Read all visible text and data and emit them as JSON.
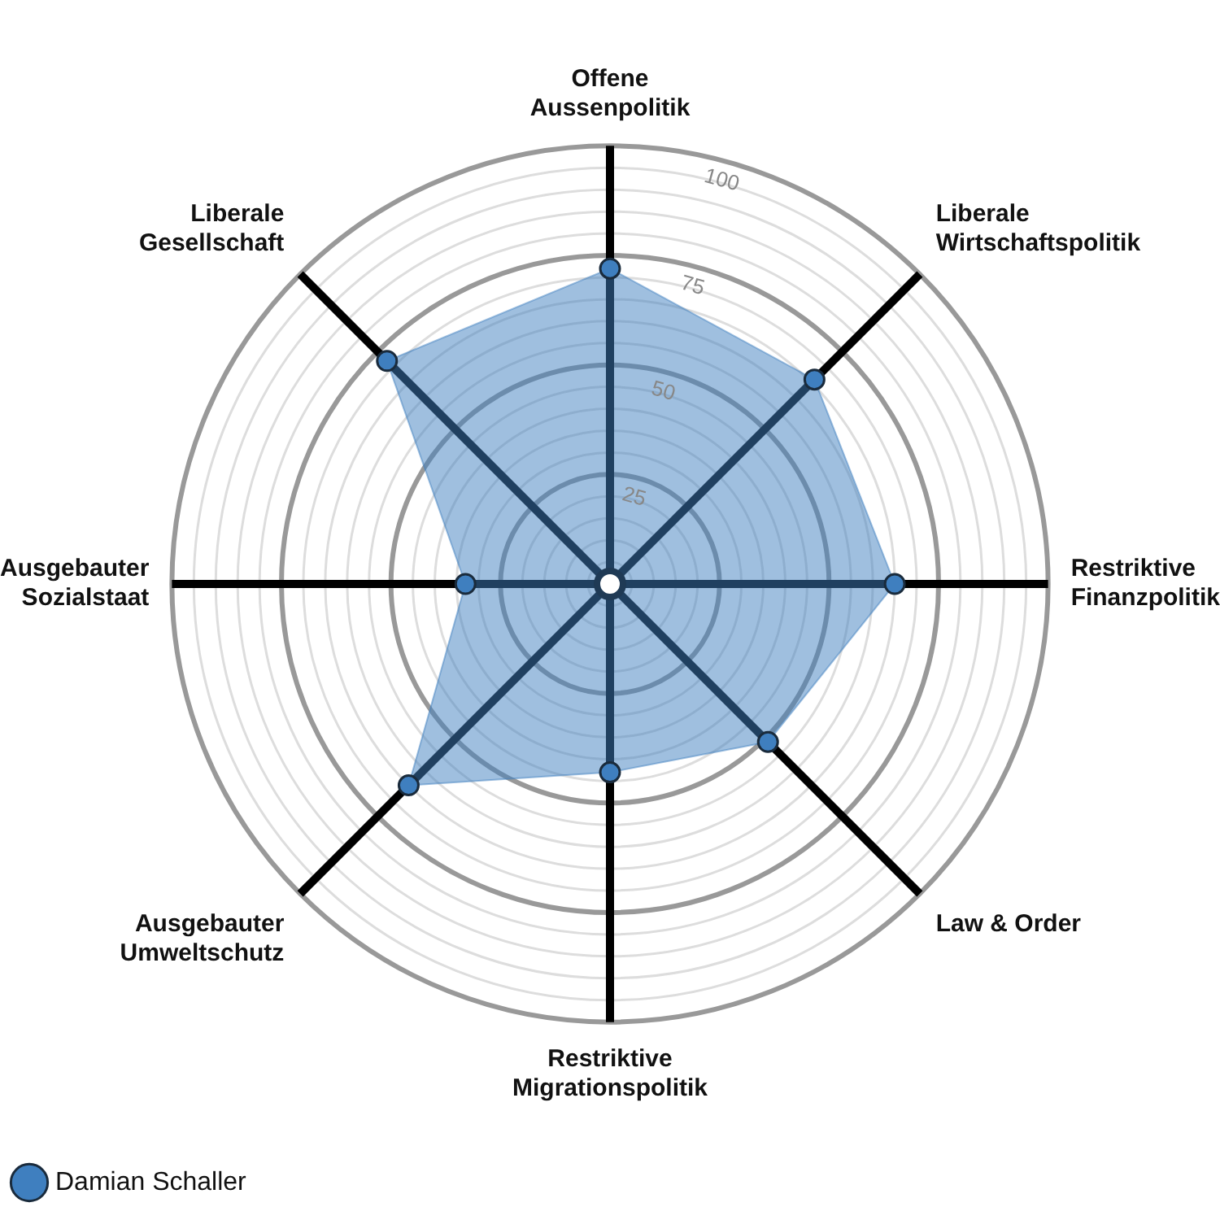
{
  "chart_data": {
    "type": "radar",
    "categories": [
      "Offene\nAussenpolitik",
      "Liberale\nWirtschaftspolitik",
      "Restriktive\nFinanzpolitik",
      "Law & Order",
      "Restriktive\nMigrationspolitik",
      "Ausgebauter\nUmweltschutz",
      "Ausgebauter\nSozialstaat",
      "Liberale\nGesellschaft"
    ],
    "series": [
      {
        "name": "Damian Schaller",
        "color": "#3f7fbf",
        "values": [
          72,
          66,
          65,
          51,
          43,
          65,
          33,
          72
        ]
      }
    ],
    "ylim": [
      0,
      100
    ],
    "yticks": [
      25,
      50,
      75,
      100
    ],
    "grid": true,
    "legend": "bottom",
    "marker": "circle"
  }
}
